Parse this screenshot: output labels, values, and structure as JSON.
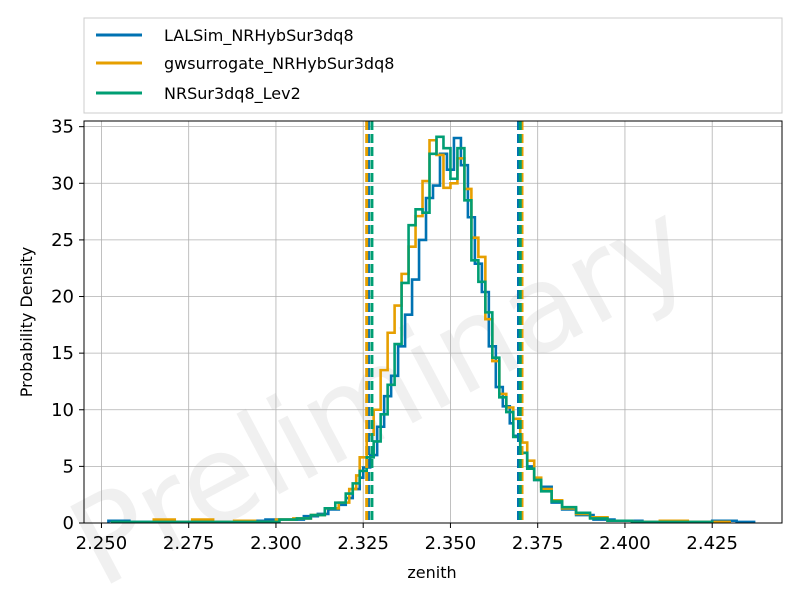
{
  "chart_data": {
    "type": "histogram",
    "xlabel": "zenith",
    "ylabel": "Probability Density",
    "watermark": "Preliminary",
    "xlim": [
      2.245,
      2.445
    ],
    "ylim": [
      0,
      35.5
    ],
    "xticks": [
      2.25,
      2.275,
      2.3,
      2.325,
      2.35,
      2.375,
      2.4,
      2.425
    ],
    "xtick_labels": [
      "2.250",
      "2.275",
      "2.300",
      "2.325",
      "2.350",
      "2.375",
      "2.400",
      "2.425"
    ],
    "yticks": [
      0,
      5,
      10,
      15,
      20,
      25,
      30,
      35
    ],
    "ytick_labels": [
      "0",
      "5",
      "10",
      "15",
      "20",
      "25",
      "30",
      "35"
    ],
    "grid": true,
    "legend_position": "above-plot",
    "series": [
      {
        "name": "LALSim_NRHybSur3dq8",
        "color": "#0072b2",
        "bins": [
          [
            2.252,
            0.2
          ],
          [
            2.258,
            0.1
          ],
          [
            2.263,
            0.1
          ],
          [
            2.269,
            0.1
          ],
          [
            2.275,
            0.1
          ],
          [
            2.28,
            0.1
          ],
          [
            2.286,
            0.1
          ],
          [
            2.292,
            0.2
          ],
          [
            2.297,
            0.3
          ],
          [
            2.303,
            0.3
          ],
          [
            2.308,
            0.6
          ],
          [
            2.312,
            0.8
          ],
          [
            2.315,
            1.2
          ],
          [
            2.318,
            1.6
          ],
          [
            2.32,
            2.2
          ],
          [
            2.322,
            3.0
          ],
          [
            2.324,
            4.0
          ],
          [
            2.325,
            4.9
          ],
          [
            2.327,
            6.0
          ],
          [
            2.329,
            8.5
          ],
          [
            2.331,
            11.2
          ],
          [
            2.333,
            13.0
          ],
          [
            2.335,
            15.6
          ],
          [
            2.337,
            18.4
          ],
          [
            2.339,
            21.5
          ],
          [
            2.341,
            25.0
          ],
          [
            2.343,
            28.7
          ],
          [
            2.345,
            29.8
          ],
          [
            2.347,
            32.6
          ],
          [
            2.349,
            31.2
          ],
          [
            2.351,
            34.0
          ],
          [
            2.353,
            31.6
          ],
          [
            2.355,
            27.0
          ],
          [
            2.357,
            22.9
          ],
          [
            2.359,
            20.4
          ],
          [
            2.361,
            15.6
          ],
          [
            2.363,
            12.0
          ],
          [
            2.365,
            10.3
          ],
          [
            2.367,
            8.8
          ],
          [
            2.368,
            7.7
          ],
          [
            2.37,
            6.2
          ],
          [
            2.372,
            5.0
          ],
          [
            2.374,
            3.8
          ],
          [
            2.376,
            3.2
          ],
          [
            2.379,
            1.8
          ],
          [
            2.382,
            1.2
          ],
          [
            2.386,
            0.7
          ],
          [
            2.391,
            0.3
          ],
          [
            2.397,
            0.2
          ],
          [
            2.405,
            0.1
          ],
          [
            2.415,
            0.1
          ],
          [
            2.425,
            0.2
          ],
          [
            2.432,
            0.1
          ],
          [
            2.437,
            0
          ]
        ],
        "ci_lines": [
          2.3265,
          2.3695
        ]
      },
      {
        "name": "gwsurrogate_NRHybSur3dq8",
        "color": "#e69f00",
        "bins": [
          [
            2.265,
            0.3
          ],
          [
            2.271,
            0.1
          ],
          [
            2.276,
            0.3
          ],
          [
            2.282,
            0.1
          ],
          [
            2.288,
            0.2
          ],
          [
            2.294,
            0.1
          ],
          [
            2.3,
            0.3
          ],
          [
            2.305,
            0.4
          ],
          [
            2.31,
            0.7
          ],
          [
            2.314,
            1.3
          ],
          [
            2.318,
            1.8
          ],
          [
            2.321,
            3.0
          ],
          [
            2.323,
            4.2
          ],
          [
            2.324,
            5.8
          ],
          [
            2.326,
            7.8
          ],
          [
            2.328,
            10.0
          ],
          [
            2.33,
            13.5
          ],
          [
            2.332,
            16.8
          ],
          [
            2.334,
            19.2
          ],
          [
            2.336,
            22.0
          ],
          [
            2.338,
            24.4
          ],
          [
            2.34,
            27.1
          ],
          [
            2.342,
            30.2
          ],
          [
            2.344,
            33.8
          ],
          [
            2.346,
            32.5
          ],
          [
            2.348,
            29.6
          ],
          [
            2.35,
            30.0
          ],
          [
            2.352,
            32.2
          ],
          [
            2.354,
            29.5
          ],
          [
            2.356,
            25.2
          ],
          [
            2.358,
            23.5
          ],
          [
            2.36,
            18.0
          ],
          [
            2.362,
            14.3
          ],
          [
            2.364,
            11.4
          ],
          [
            2.366,
            10.2
          ],
          [
            2.368,
            9.2
          ],
          [
            2.37,
            7.1
          ],
          [
            2.372,
            5.5
          ],
          [
            2.374,
            4.0
          ],
          [
            2.376,
            3.0
          ],
          [
            2.379,
            2.0
          ],
          [
            2.382,
            1.3
          ],
          [
            2.386,
            0.8
          ],
          [
            2.39,
            0.5
          ],
          [
            2.395,
            0.2
          ],
          [
            2.402,
            0.1
          ],
          [
            2.41,
            0.2
          ],
          [
            2.418,
            0.1
          ],
          [
            2.425,
            0.1
          ],
          [
            2.43,
            0
          ]
        ],
        "ci_lines": [
          2.326,
          2.3705
        ]
      },
      {
        "name": "NRSur3dq8_Lev2",
        "color": "#009e73",
        "bins": [
          [
            2.253,
            0.1
          ],
          [
            2.26,
            0.1
          ],
          [
            2.267,
            0.1
          ],
          [
            2.274,
            0.1
          ],
          [
            2.28,
            0.1
          ],
          [
            2.287,
            0.1
          ],
          [
            2.294,
            0.1
          ],
          [
            2.301,
            0.3
          ],
          [
            2.306,
            0.4
          ],
          [
            2.31,
            0.7
          ],
          [
            2.314,
            1.3
          ],
          [
            2.317,
            1.8
          ],
          [
            2.32,
            2.6
          ],
          [
            2.322,
            3.5
          ],
          [
            2.324,
            4.6
          ],
          [
            2.326,
            5.8
          ],
          [
            2.328,
            7.2
          ],
          [
            2.33,
            9.6
          ],
          [
            2.332,
            12.2
          ],
          [
            2.334,
            15.8
          ],
          [
            2.336,
            21.2
          ],
          [
            2.338,
            26.3
          ],
          [
            2.34,
            27.7
          ],
          [
            2.342,
            27.4
          ],
          [
            2.344,
            32.6
          ],
          [
            2.346,
            34.1
          ],
          [
            2.348,
            33.1
          ],
          [
            2.35,
            30.4
          ],
          [
            2.352,
            33.1
          ],
          [
            2.354,
            28.5
          ],
          [
            2.356,
            23.2
          ],
          [
            2.358,
            21.3
          ],
          [
            2.36,
            18.6
          ],
          [
            2.362,
            14.6
          ],
          [
            2.364,
            11.1
          ],
          [
            2.366,
            9.8
          ],
          [
            2.368,
            7.6
          ],
          [
            2.37,
            6.2
          ],
          [
            2.372,
            4.8
          ],
          [
            2.374,
            3.8
          ],
          [
            2.376,
            2.8
          ],
          [
            2.379,
            1.9
          ],
          [
            2.382,
            1.4
          ],
          [
            2.386,
            0.9
          ],
          [
            2.39,
            0.4
          ],
          [
            2.395,
            0.2
          ],
          [
            2.402,
            0.1
          ],
          [
            2.41,
            0.1
          ],
          [
            2.418,
            0.1
          ],
          [
            2.425,
            0
          ]
        ],
        "ci_lines": [
          2.3275,
          2.37
        ]
      }
    ]
  }
}
